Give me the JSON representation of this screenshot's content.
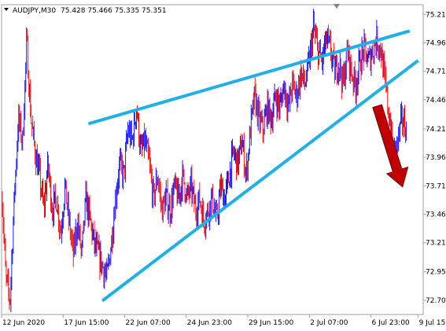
{
  "chart_data": {
    "type": "candlestick",
    "symbol_label": "AUDJPY,M30",
    "ohlc_label": "75.428 75.466 75.335 75.351",
    "ylim": [
      72.58,
      75.3
    ],
    "y_ticks": [
      "75.215",
      "74.965",
      "74.715",
      "74.465",
      "74.210",
      "73.960",
      "73.710",
      "73.460",
      "73.210",
      "72.955",
      "72.705"
    ],
    "y_tick_values": [
      75.215,
      74.965,
      74.715,
      74.465,
      74.21,
      73.96,
      73.71,
      73.46,
      73.21,
      72.955,
      72.705
    ],
    "x_ticks": [
      "12 Jun 2020",
      "17 Jun 15:00",
      "22 Jun 07:00",
      "24 Jun 23:00",
      "29 Jun 15:00",
      "2 Jul 07:00",
      "6 Jul 23:00",
      "9 Jul 15:00"
    ],
    "x_tick_positions": [
      0,
      0.146,
      0.292,
      0.438,
      0.584,
      0.73,
      0.876,
      0.988
    ],
    "price_path": [
      [
        0.0,
        73.7
      ],
      [
        0.01,
        72.9
      ],
      [
        0.02,
        72.7
      ],
      [
        0.03,
        73.6
      ],
      [
        0.04,
        74.3
      ],
      [
        0.05,
        74.1
      ],
      [
        0.06,
        75.0
      ],
      [
        0.065,
        74.6
      ],
      [
        0.07,
        74.3
      ],
      [
        0.08,
        74.0
      ],
      [
        0.09,
        73.8
      ],
      [
        0.1,
        73.5
      ],
      [
        0.11,
        73.9
      ],
      [
        0.12,
        73.5
      ],
      [
        0.13,
        73.6
      ],
      [
        0.14,
        73.3
      ],
      [
        0.15,
        73.7
      ],
      [
        0.16,
        73.4
      ],
      [
        0.17,
        73.1
      ],
      [
        0.18,
        73.4
      ],
      [
        0.19,
        73.1
      ],
      [
        0.2,
        73.6
      ],
      [
        0.21,
        73.4
      ],
      [
        0.22,
        73.2
      ],
      [
        0.23,
        73.1
      ],
      [
        0.24,
        73.0
      ],
      [
        0.25,
        72.9
      ],
      [
        0.26,
        73.2
      ],
      [
        0.27,
        73.6
      ],
      [
        0.28,
        73.9
      ],
      [
        0.29,
        73.8
      ],
      [
        0.3,
        74.2
      ],
      [
        0.31,
        74.1
      ],
      [
        0.32,
        74.4
      ],
      [
        0.33,
        74.0
      ],
      [
        0.34,
        74.1
      ],
      [
        0.35,
        73.9
      ],
      [
        0.36,
        73.6
      ],
      [
        0.37,
        73.8
      ],
      [
        0.38,
        73.5
      ],
      [
        0.39,
        73.6
      ],
      [
        0.4,
        73.5
      ],
      [
        0.41,
        73.7
      ],
      [
        0.42,
        73.6
      ],
      [
        0.43,
        73.8
      ],
      [
        0.44,
        73.6
      ],
      [
        0.45,
        73.7
      ],
      [
        0.46,
        73.5
      ],
      [
        0.47,
        73.6
      ],
      [
        0.48,
        73.4
      ],
      [
        0.49,
        73.5
      ],
      [
        0.5,
        73.6
      ],
      [
        0.51,
        73.4
      ],
      [
        0.52,
        73.7
      ],
      [
        0.53,
        73.6
      ],
      [
        0.54,
        73.8
      ],
      [
        0.55,
        74.0
      ],
      [
        0.56,
        73.9
      ],
      [
        0.57,
        74.1
      ],
      [
        0.58,
        73.8
      ],
      [
        0.59,
        74.2
      ],
      [
        0.6,
        74.5
      ],
      [
        0.61,
        74.3
      ],
      [
        0.62,
        74.2
      ],
      [
        0.63,
        74.4
      ],
      [
        0.64,
        74.3
      ],
      [
        0.65,
        74.5
      ],
      [
        0.66,
        74.4
      ],
      [
        0.67,
        74.6
      ],
      [
        0.68,
        74.4
      ],
      [
        0.69,
        74.6
      ],
      [
        0.7,
        74.5
      ],
      [
        0.71,
        74.7
      ],
      [
        0.72,
        74.6
      ],
      [
        0.73,
        74.8
      ],
      [
        0.74,
        75.1
      ],
      [
        0.75,
        74.9
      ],
      [
        0.76,
        74.8
      ],
      [
        0.77,
        75.0
      ],
      [
        0.78,
        74.9
      ],
      [
        0.79,
        74.7
      ],
      [
        0.8,
        74.8
      ],
      [
        0.81,
        74.6
      ],
      [
        0.82,
        74.9
      ],
      [
        0.83,
        74.7
      ],
      [
        0.84,
        74.6
      ],
      [
        0.85,
        74.8
      ],
      [
        0.86,
        74.9
      ],
      [
        0.87,
        74.8
      ],
      [
        0.88,
        74.9
      ],
      [
        0.89,
        75.0
      ],
      [
        0.9,
        74.9
      ],
      [
        0.91,
        74.6
      ],
      [
        0.92,
        74.3
      ],
      [
        0.93,
        74.0
      ],
      [
        0.94,
        74.1
      ],
      [
        0.95,
        74.3
      ],
      [
        0.96,
        74.2
      ]
    ],
    "trend_lines": [
      {
        "from": [
          0.206,
          74.255
        ],
        "to": [
          0.968,
          75.07
        ]
      },
      {
        "from": [
          0.239,
          72.7
        ],
        "to": [
          0.988,
          74.81
        ]
      }
    ],
    "arrow": {
      "from": [
        0.891,
        74.41
      ],
      "to": [
        0.951,
        73.7
      ]
    },
    "colors": {
      "bull": "#0000ff",
      "bear": "#ff0000",
      "trend": "#20b0e8",
      "arrow": "#c00000",
      "axis": "#a0a0a0",
      "grid": "#e8e8e8"
    }
  }
}
